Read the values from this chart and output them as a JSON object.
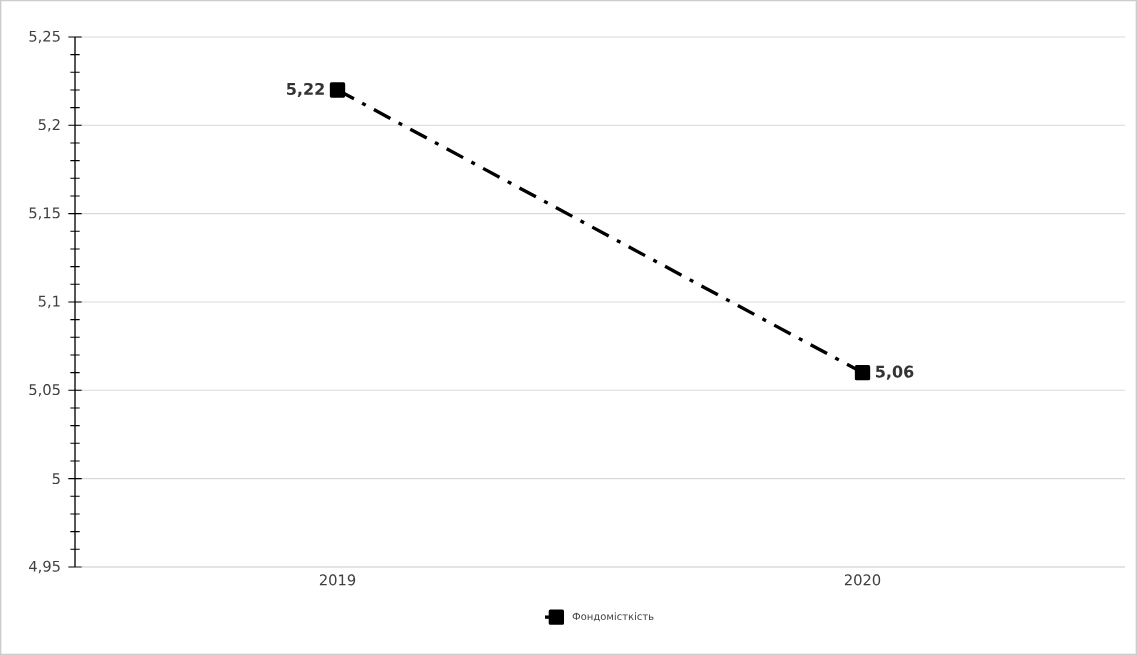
{
  "chart_data": {
    "type": "line",
    "categories": [
      "2019",
      "2020"
    ],
    "series": [
      {
        "name": "Фондомісткість",
        "color": "#000000",
        "values": [
          5.22,
          5.06
        ],
        "value_labels": [
          "5,22",
          "5,06"
        ]
      }
    ],
    "ylim": [
      4.95,
      5.25
    ],
    "yticks": [
      {
        "value": 4.95,
        "label": "4,95"
      },
      {
        "value": 5.0,
        "label": "5"
      },
      {
        "value": 5.05,
        "label": "5,05"
      },
      {
        "value": 5.1,
        "label": "5,1"
      },
      {
        "value": 5.15,
        "label": "5,15"
      },
      {
        "value": 5.2,
        "label": "5,2"
      },
      {
        "value": 5.25,
        "label": "5,25"
      }
    ],
    "grid": "y",
    "legend": "bottom",
    "marker": "square",
    "line_style": "dashed"
  }
}
